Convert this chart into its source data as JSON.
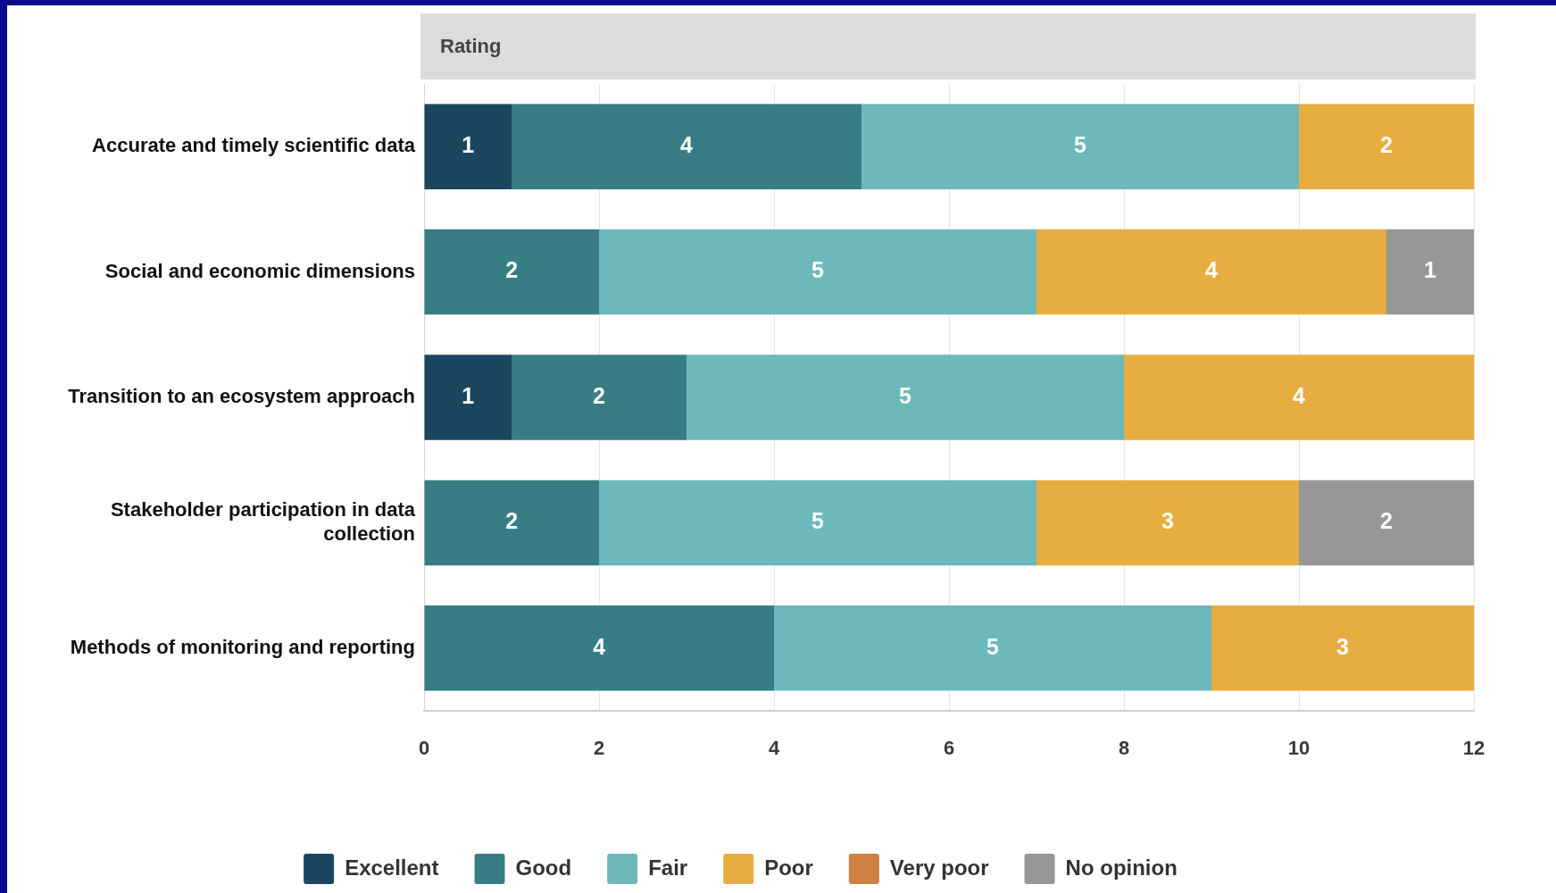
{
  "chart_data": {
    "type": "bar",
    "orientation": "horizontal",
    "stacked": true,
    "title": "Rating",
    "categories": [
      "Accurate and timely scientific data",
      "Social and economic dimensions",
      "Transition to an ecosystem approach",
      "Stakeholder participation in data collection",
      "Methods of monitoring and reporting"
    ],
    "series": [
      {
        "name": "Excellent",
        "color": "#1c4660",
        "values": [
          1,
          null,
          1,
          null,
          null
        ]
      },
      {
        "name": "Good",
        "color": "#387d83",
        "values": [
          4,
          2,
          2,
          2,
          4
        ]
      },
      {
        "name": "Fair",
        "color": "#6cb8bb",
        "values": [
          5,
          5,
          5,
          5,
          5
        ]
      },
      {
        "name": "Poor",
        "color": "#e7ad40",
        "values": [
          2,
          4,
          4,
          3,
          3
        ]
      },
      {
        "name": "Very poor",
        "color": "#d08040",
        "values": [
          null,
          null,
          null,
          null,
          null
        ]
      },
      {
        "name": "No opinion",
        "color": "#979797",
        "values": [
          null,
          1,
          null,
          2,
          null
        ]
      }
    ],
    "xlim": [
      0,
      12
    ],
    "xticks": [
      0,
      2,
      4,
      6,
      8,
      10,
      12
    ],
    "grid": "x",
    "legend": "bottom",
    "data_labels": true
  }
}
